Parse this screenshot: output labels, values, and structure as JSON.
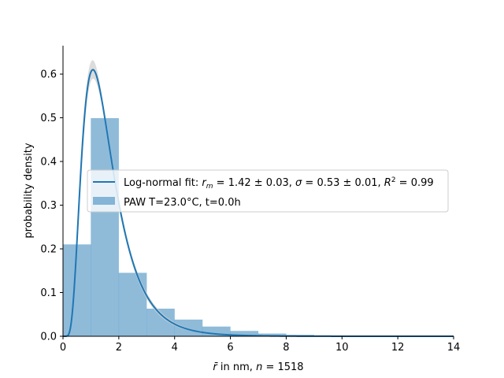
{
  "chart_data": {
    "type": "bar",
    "xlabel_prefix": "r̄",
    "xlabel_suffix": " in nm, ",
    "xlabel_n": "n",
    "xlabel_n_value": " = 1518",
    "ylabel": "probability density",
    "xlim": [
      0,
      14
    ],
    "ylim": [
      0,
      0.665
    ],
    "xticks": [
      0,
      2,
      4,
      6,
      8,
      10,
      12,
      14
    ],
    "yticks": [
      0.0,
      0.1,
      0.2,
      0.3,
      0.4,
      0.5,
      0.6
    ],
    "xtick_labels": [
      "0",
      "2",
      "4",
      "6",
      "8",
      "10",
      "12",
      "14"
    ],
    "ytick_labels": [
      "0.0",
      "0.1",
      "0.2",
      "0.3",
      "0.4",
      "0.5",
      "0.6"
    ],
    "grid": false,
    "legend_position": "center-right",
    "histogram": {
      "name": "PAW T=23.0°C, t=0.0h",
      "color": "#1f77b4",
      "bin_edges": [
        0,
        1,
        2,
        3,
        4,
        5,
        6,
        7,
        8,
        9,
        10,
        11,
        12,
        13,
        14
      ],
      "values": [
        0.21,
        0.499,
        0.145,
        0.063,
        0.038,
        0.022,
        0.012,
        0.006,
        0.003,
        0.0015,
        0.001,
        0.0006,
        0.0003,
        0.0002
      ]
    },
    "fit": {
      "name": "Log-normal fit",
      "color": "#1f77b4",
      "rm": 1.42,
      "rm_err": 0.03,
      "sigma": 0.53,
      "sigma_err": 0.01,
      "R2": 0.99,
      "band_color": "#d3d3d3"
    },
    "legend": {
      "fit_label_prefix": "Log-normal fit: ",
      "fit_rm_sym": "r",
      "fit_rm_sub": "m",
      "fit_rm_val": " = 1.42 ± 0.03, ",
      "fit_sigma_sym": "σ",
      "fit_sigma_val": " = 0.53 ± 0.01, ",
      "fit_r2_sym": "R",
      "fit_r2_sup": "2",
      "fit_r2_val": " = 0.99",
      "hist_label": "PAW T=23.0°C, t=0.0h"
    }
  }
}
